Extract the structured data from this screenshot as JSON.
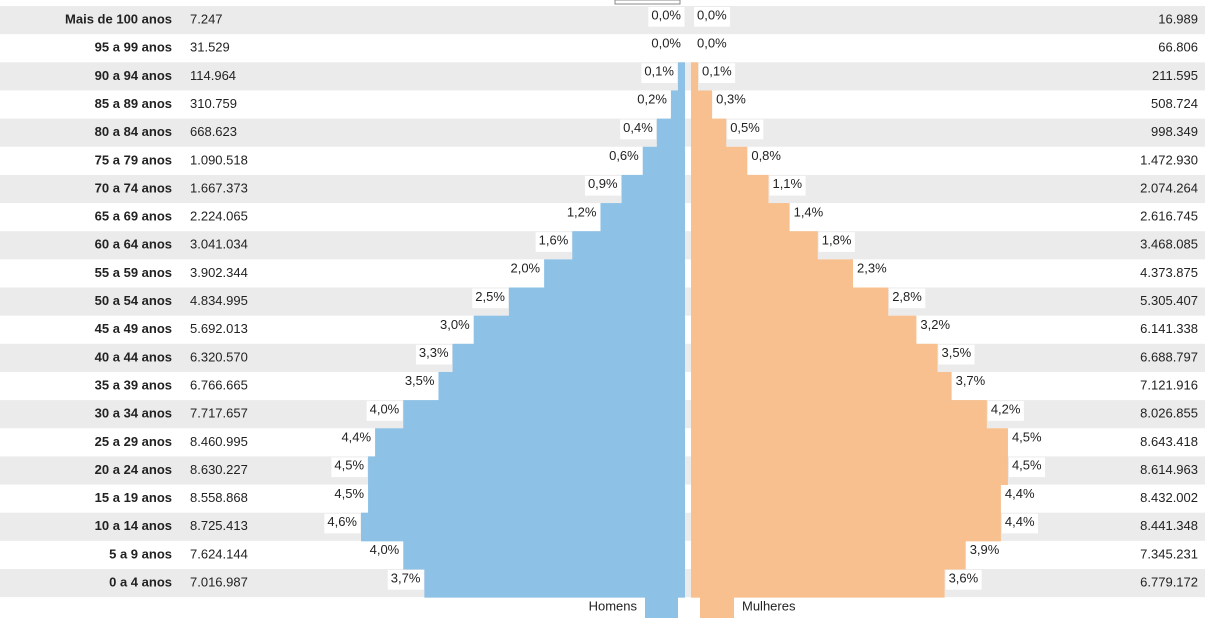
{
  "chart_data": {
    "type": "pyramid",
    "categories": [
      "Mais de 100 anos",
      "95 a 99 anos",
      "90 a 94 anos",
      "85 a 89 anos",
      "80 a 84 anos",
      "75 a 79 anos",
      "70 a 74 anos",
      "65 a 69 anos",
      "60 a 64 anos",
      "55 a 59 anos",
      "50 a 54 anos",
      "45 a 49 anos",
      "40 a 44 anos",
      "35 a 39 anos",
      "30 a 34 anos",
      "25 a 29 anos",
      "20 a 24 anos",
      "15 a 19 anos",
      "10 a 14 anos",
      "5 a 9 anos",
      "0 a 4 anos"
    ],
    "series": [
      {
        "name": "Homens",
        "color": "#8ec1e6",
        "values": [
          0.0,
          0.0,
          0.1,
          0.2,
          0.4,
          0.6,
          0.9,
          1.2,
          1.6,
          2.0,
          2.5,
          3.0,
          3.3,
          3.5,
          4.0,
          4.4,
          4.5,
          4.5,
          4.6,
          4.0,
          3.7
        ],
        "value_labels": [
          "0,0%",
          "0,0%",
          "0,1%",
          "0,2%",
          "0,4%",
          "0,6%",
          "0,9%",
          "1,2%",
          "1,6%",
          "2,0%",
          "2,5%",
          "3,0%",
          "3,3%",
          "3,5%",
          "4,0%",
          "4,4%",
          "4,5%",
          "4,5%",
          "4,6%",
          "4,0%",
          "3,7%"
        ],
        "counts": [
          "7.247",
          "31.529",
          "114.964",
          "310.759",
          "668.623",
          "1.090.518",
          "1.667.373",
          "2.224.065",
          "3.041.034",
          "3.902.344",
          "4.834.995",
          "5.692.013",
          "6.320.570",
          "6.766.665",
          "7.717.657",
          "8.460.995",
          "8.630.227",
          "8.558.868",
          "8.725.413",
          "7.624.144",
          "7.016.987"
        ]
      },
      {
        "name": "Mulheres",
        "color": "#f8c08e",
        "values": [
          0.0,
          0.0,
          0.1,
          0.3,
          0.5,
          0.8,
          1.1,
          1.4,
          1.8,
          2.3,
          2.8,
          3.2,
          3.5,
          3.7,
          4.2,
          4.5,
          4.5,
          4.4,
          4.4,
          3.9,
          3.6
        ],
        "value_labels": [
          "0,0%",
          "0,0%",
          "0,1%",
          "0,3%",
          "0,5%",
          "0,8%",
          "1,1%",
          "1,4%",
          "1,8%",
          "2,3%",
          "2,8%",
          "3,2%",
          "3,5%",
          "3,7%",
          "4,2%",
          "4,5%",
          "4,5%",
          "4,4%",
          "4,4%",
          "3,9%",
          "3,6%"
        ],
        "counts": [
          "16.989",
          "66.806",
          "211.595",
          "508.724",
          "998.349",
          "1.472.930",
          "2.074.264",
          "2.616.745",
          "3.468.085",
          "4.373.875",
          "5.305.407",
          "6.141.338",
          "6.688.797",
          "7.121.916",
          "8.026.855",
          "8.643.418",
          "8.614.963",
          "8.432.002",
          "8.441.348",
          "7.345.231",
          "6.779.172"
        ]
      }
    ]
  }
}
